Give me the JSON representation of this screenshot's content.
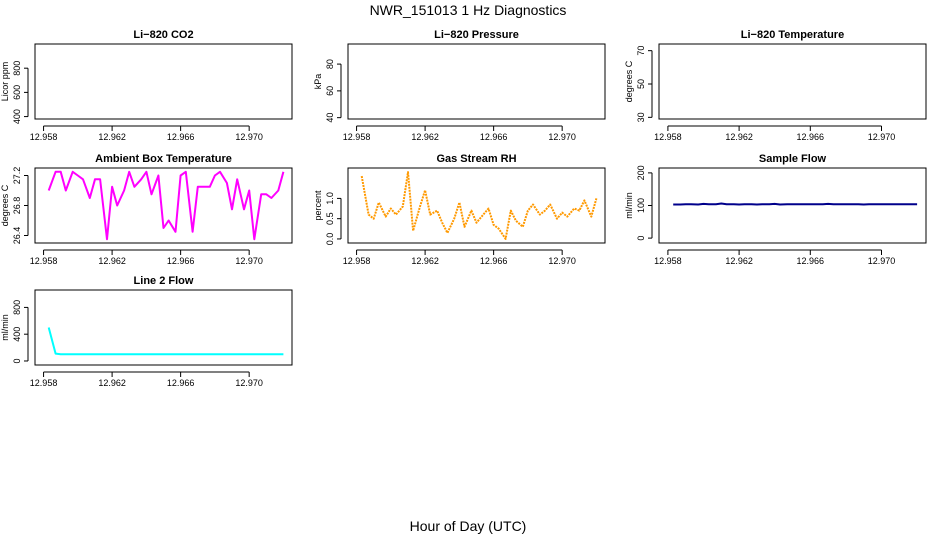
{
  "figure": {
    "title": "NWR_151013  1 Hz Diagnostics",
    "xlabel": "Hour of Day (UTC)"
  },
  "chart_data": [
    {
      "type": "line",
      "title": "Li−820 CO2",
      "xlabel": "Hour of Day (UTC)",
      "ylabel": "Licor ppm",
      "xlim": [
        12.9575,
        12.9725
      ],
      "ylim": [
        380,
        1000
      ],
      "xticks": [
        12.958,
        12.962,
        12.966,
        12.97
      ],
      "xtick_labels": [
        "12.958",
        "12.962",
        "12.966",
        "12.970"
      ],
      "yticks": [
        400,
        600,
        800
      ],
      "ytick_labels": [
        "400",
        "600",
        "800"
      ],
      "series": []
    },
    {
      "type": "line",
      "title": "Li−820 Pressure",
      "xlabel": "Hour of Day (UTC)",
      "ylabel": "kPa",
      "xlim": [
        12.9575,
        12.9725
      ],
      "ylim": [
        39,
        95
      ],
      "xticks": [
        12.958,
        12.962,
        12.966,
        12.97
      ],
      "xtick_labels": [
        "12.958",
        "12.962",
        "12.966",
        "12.970"
      ],
      "yticks": [
        40,
        60,
        80
      ],
      "ytick_labels": [
        "40",
        "60",
        "80"
      ],
      "series": []
    },
    {
      "type": "line",
      "title": "Li−820 Temperature",
      "xlabel": "Hour of Day (UTC)",
      "ylabel": "degrees C",
      "xlim": [
        12.9575,
        12.9725
      ],
      "ylim": [
        29,
        74
      ],
      "xticks": [
        12.958,
        12.962,
        12.966,
        12.97
      ],
      "xtick_labels": [
        "12.958",
        "12.962",
        "12.966",
        "12.970"
      ],
      "yticks": [
        30,
        50,
        70
      ],
      "ytick_labels": [
        "30",
        "50",
        "70"
      ],
      "series": []
    },
    {
      "type": "line",
      "title": "Ambient Box Temperature",
      "xlabel": "Hour of Day (UTC)",
      "ylabel": "degrees C",
      "xlim": [
        12.9575,
        12.9725
      ],
      "ylim": [
        26.3,
        27.3
      ],
      "xticks": [
        12.958,
        12.962,
        12.966,
        12.97
      ],
      "xtick_labels": [
        "12.958",
        "12.962",
        "12.966",
        "12.970"
      ],
      "yticks": [
        26.4,
        26.8,
        27.2
      ],
      "ytick_labels": [
        "26.4",
        "26.8",
        "27.2"
      ],
      "series": [
        {
          "name": "Ambient Box Temperature",
          "color": "#ff00ff",
          "dashed": false,
          "x": [
            12.9583,
            12.9587,
            12.959,
            12.9593,
            12.9597,
            12.96,
            12.9603,
            12.9607,
            12.961,
            12.9613,
            12.9617,
            12.962,
            12.9623,
            12.9627,
            12.963,
            12.9633,
            12.9637,
            12.964,
            12.9643,
            12.9647,
            12.965,
            12.9653,
            12.9657,
            12.966,
            12.9663,
            12.9667,
            12.967,
            12.9673,
            12.9677,
            12.968,
            12.9683,
            12.9687,
            12.969,
            12.9693,
            12.9697,
            12.97,
            12.9703,
            12.9707,
            12.971,
            12.9713,
            12.9717,
            12.972
          ],
          "values": [
            27.0,
            27.25,
            27.25,
            27.0,
            27.25,
            27.2,
            27.15,
            26.9,
            27.15,
            27.15,
            26.35,
            27.05,
            26.8,
            27.0,
            27.25,
            27.05,
            27.15,
            27.25,
            26.95,
            27.2,
            26.5,
            26.6,
            26.45,
            27.2,
            27.25,
            26.45,
            27.05,
            27.05,
            27.05,
            27.2,
            27.25,
            27.1,
            26.75,
            27.15,
            26.75,
            27.0,
            26.35,
            26.95,
            26.95,
            26.9,
            27.0,
            27.25
          ]
        }
      ]
    },
    {
      "type": "line",
      "title": "Gas Stream RH",
      "xlabel": "Hour of Day (UTC)",
      "ylabel": "percent",
      "xlim": [
        12.9575,
        12.9725
      ],
      "ylim": [
        -0.1,
        1.75
      ],
      "xticks": [
        12.958,
        12.962,
        12.966,
        12.97
      ],
      "xtick_labels": [
        "12.958",
        "12.962",
        "12.966",
        "12.970"
      ],
      "yticks": [
        0.0,
        0.5,
        1.0
      ],
      "ytick_labels": [
        "0.0",
        "0.5",
        "1.0"
      ],
      "series": [
        {
          "name": "Gas Stream RH",
          "color": "#ff9900",
          "dashed": true,
          "x": [
            12.9583,
            12.9587,
            12.959,
            12.9593,
            12.9597,
            12.96,
            12.9603,
            12.9607,
            12.961,
            12.9613,
            12.9617,
            12.962,
            12.9623,
            12.9627,
            12.963,
            12.9633,
            12.9637,
            12.964,
            12.9643,
            12.9647,
            12.965,
            12.9653,
            12.9657,
            12.966,
            12.9663,
            12.9667,
            12.967,
            12.9673,
            12.9677,
            12.968,
            12.9683,
            12.9687,
            12.969,
            12.9693,
            12.9697,
            12.97,
            12.9703,
            12.9707,
            12.971,
            12.9713,
            12.9717,
            12.972
          ],
          "values": [
            1.55,
            0.6,
            0.5,
            0.9,
            0.55,
            0.75,
            0.6,
            0.8,
            1.65,
            0.2,
            0.8,
            1.2,
            0.6,
            0.7,
            0.4,
            0.15,
            0.5,
            0.9,
            0.3,
            0.7,
            0.4,
            0.55,
            0.75,
            0.35,
            0.25,
            0.0,
            0.7,
            0.45,
            0.3,
            0.7,
            0.85,
            0.6,
            0.7,
            0.85,
            0.5,
            0.65,
            0.55,
            0.75,
            0.7,
            0.95,
            0.55,
            1.0
          ]
        }
      ]
    },
    {
      "type": "line",
      "title": "Sample Flow",
      "xlabel": "Hour of Day (UTC)",
      "ylabel": "ml/min",
      "xlim": [
        12.9575,
        12.9725
      ],
      "ylim": [
        -15,
        215
      ],
      "xticks": [
        12.958,
        12.962,
        12.966,
        12.97
      ],
      "xtick_labels": [
        "12.958",
        "12.962",
        "12.966",
        "12.970"
      ],
      "yticks": [
        0,
        100,
        200
      ],
      "ytick_labels": [
        "0",
        "100",
        "200"
      ],
      "series": [
        {
          "name": "Sample Flow",
          "color": "#00008b",
          "dashed": false,
          "x": [
            12.9583,
            12.9587,
            12.959,
            12.9593,
            12.9597,
            12.96,
            12.9603,
            12.9607,
            12.961,
            12.9613,
            12.9617,
            12.962,
            12.9623,
            12.9627,
            12.963,
            12.9633,
            12.9637,
            12.964,
            12.9643,
            12.9647,
            12.965,
            12.9653,
            12.9657,
            12.966,
            12.9663,
            12.9667,
            12.967,
            12.9673,
            12.9677,
            12.968,
            12.9683,
            12.9687,
            12.969,
            12.9693,
            12.9697,
            12.97,
            12.9703,
            12.9707,
            12.971,
            12.9713,
            12.9717,
            12.972
          ],
          "values": [
            103,
            103,
            104,
            104,
            103,
            105,
            104,
            104,
            106,
            104,
            104,
            103,
            104,
            104,
            103,
            104,
            104,
            105,
            103,
            104,
            104,
            104,
            104,
            104,
            104,
            104,
            105,
            104,
            104,
            104,
            104,
            104,
            103,
            104,
            104,
            104,
            104,
            104,
            104,
            104,
            104,
            104
          ]
        }
      ]
    },
    {
      "type": "line",
      "title": "Line 2 Flow",
      "xlabel": "Hour of Day (UTC)",
      "ylabel": "ml/min",
      "xlim": [
        12.9575,
        12.9725
      ],
      "ylim": [
        -60,
        1060
      ],
      "xticks": [
        12.958,
        12.962,
        12.966,
        12.97
      ],
      "xtick_labels": [
        "12.958",
        "12.962",
        "12.966",
        "12.970"
      ],
      "yticks": [
        0,
        400,
        800
      ],
      "ytick_labels": [
        "0",
        "400",
        "800"
      ],
      "series": [
        {
          "name": "Line 2 Flow",
          "color": "#00ffff",
          "dashed": false,
          "x": [
            12.9583,
            12.9587,
            12.959,
            12.9593,
            12.9597,
            12.96,
            12.9603,
            12.9607,
            12.961,
            12.9613,
            12.9617,
            12.962,
            12.9623,
            12.9627,
            12.963,
            12.9633,
            12.9637,
            12.964,
            12.9643,
            12.9647,
            12.965,
            12.9653,
            12.9657,
            12.966,
            12.9663,
            12.9667,
            12.967,
            12.9673,
            12.9677,
            12.968,
            12.9683,
            12.9687,
            12.969,
            12.9693,
            12.9697,
            12.97,
            12.9703,
            12.9707,
            12.971,
            12.9713,
            12.9717,
            12.972
          ],
          "values": [
            500,
            110,
            100,
            100,
            100,
            100,
            100,
            100,
            100,
            100,
            100,
            100,
            100,
            100,
            100,
            100,
            100,
            100,
            100,
            100,
            100,
            100,
            100,
            100,
            100,
            100,
            100,
            100,
            100,
            100,
            100,
            100,
            100,
            100,
            100,
            100,
            100,
            100,
            100,
            100,
            100,
            100
          ]
        }
      ]
    }
  ]
}
